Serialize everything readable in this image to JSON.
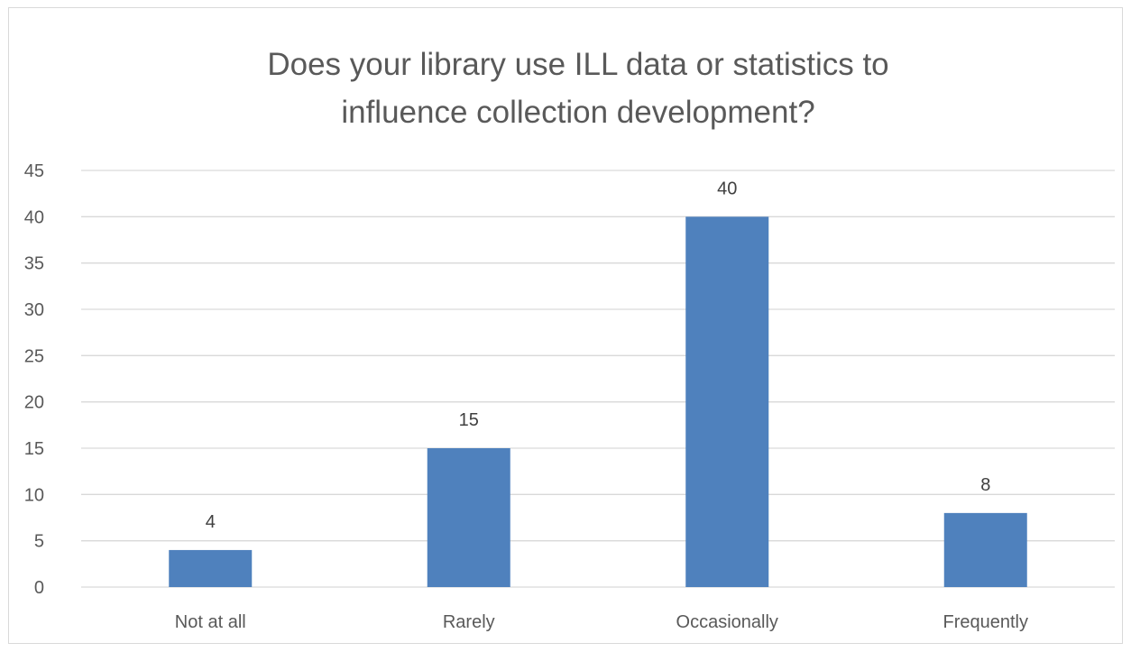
{
  "chart_data": {
    "type": "bar",
    "title_lines": [
      "Does your library use ILL data or statistics to",
      "influence collection development?"
    ],
    "categories": [
      "Not at all",
      "Rarely",
      "Occasionally",
      "Frequently"
    ],
    "values": [
      4,
      15,
      40,
      8
    ],
    "data_labels": [
      "4",
      "15",
      "40",
      "8"
    ],
    "ylim": [
      0,
      45
    ],
    "yticks": [
      0,
      5,
      10,
      15,
      20,
      25,
      30,
      35,
      40,
      45
    ],
    "grid": true,
    "legend": "none",
    "bar_color": "#4f81bd",
    "grid_color": "#d9d9d9",
    "text_color": "#595959"
  }
}
